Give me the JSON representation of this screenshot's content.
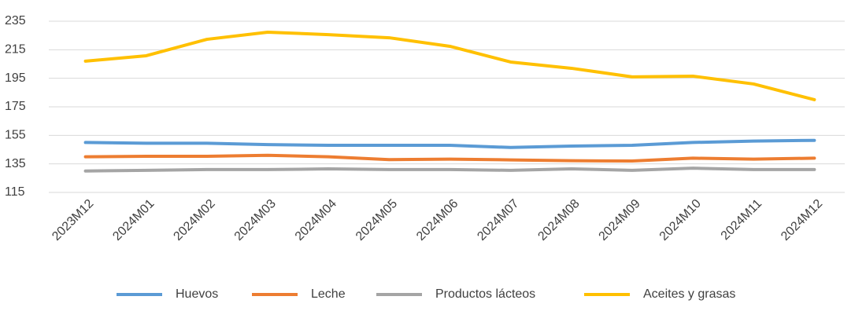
{
  "chart_data": {
    "type": "line",
    "categories": [
      "2023M12",
      "2024M01",
      "2024M02",
      "2024M03",
      "2024M04",
      "2024M05",
      "2024M06",
      "2024M07",
      "2024M08",
      "2024M09",
      "2024M10",
      "2024M11",
      "2024M12"
    ],
    "series": [
      {
        "name": "Huevos",
        "color": "#5b9bd5",
        "values": [
          150,
          149.5,
          149.5,
          148.5,
          148,
          148,
          148,
          146.5,
          147.5,
          148,
          150,
          151,
          151.5
        ]
      },
      {
        "name": "Leche",
        "color": "#ed7d31",
        "values": [
          140,
          140.3,
          140.3,
          141,
          140,
          138,
          138.3,
          137.8,
          137.2,
          137,
          139,
          138.3,
          139
        ]
      },
      {
        "name": "Productos lácteos",
        "color": "#a5a5a5",
        "values": [
          130,
          130.5,
          131,
          131,
          131.5,
          131,
          131,
          130.5,
          131.5,
          130.5,
          132,
          131,
          131
        ]
      },
      {
        "name": "Aceites y grasas",
        "color": "#ffc000",
        "values": [
          207,
          210.8,
          222.3,
          227.3,
          225.6,
          223.4,
          217.4,
          206.4,
          202,
          196,
          196.5,
          191,
          180
        ]
      }
    ],
    "ylim": [
      115,
      235
    ],
    "yticks": [
      115,
      135,
      155,
      175,
      195,
      215,
      235
    ],
    "grid": true,
    "legend": "bottom"
  }
}
